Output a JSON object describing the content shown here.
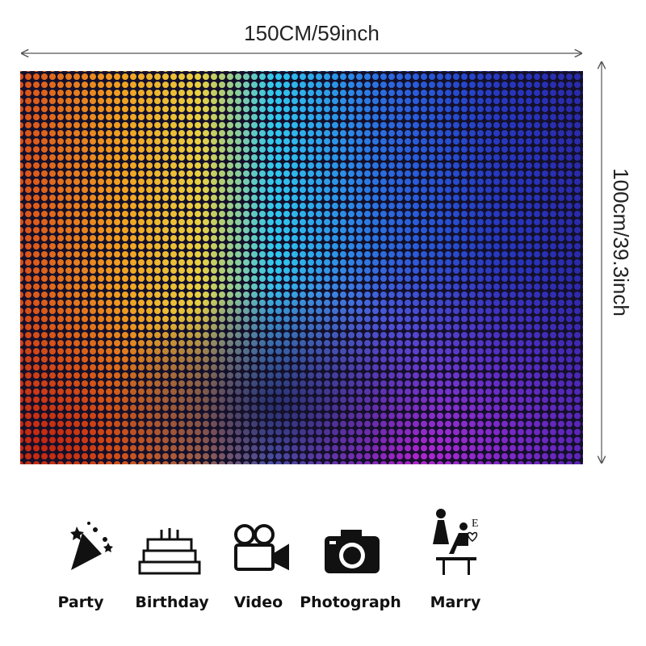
{
  "dimensions": {
    "width": "150CM/59inch",
    "height": "100cm/39.3inch"
  },
  "uses": [
    {
      "label": "Party"
    },
    {
      "label": "Birthday"
    },
    {
      "label": "Video"
    },
    {
      "label": "Photograph"
    },
    {
      "label": "Marry"
    }
  ]
}
